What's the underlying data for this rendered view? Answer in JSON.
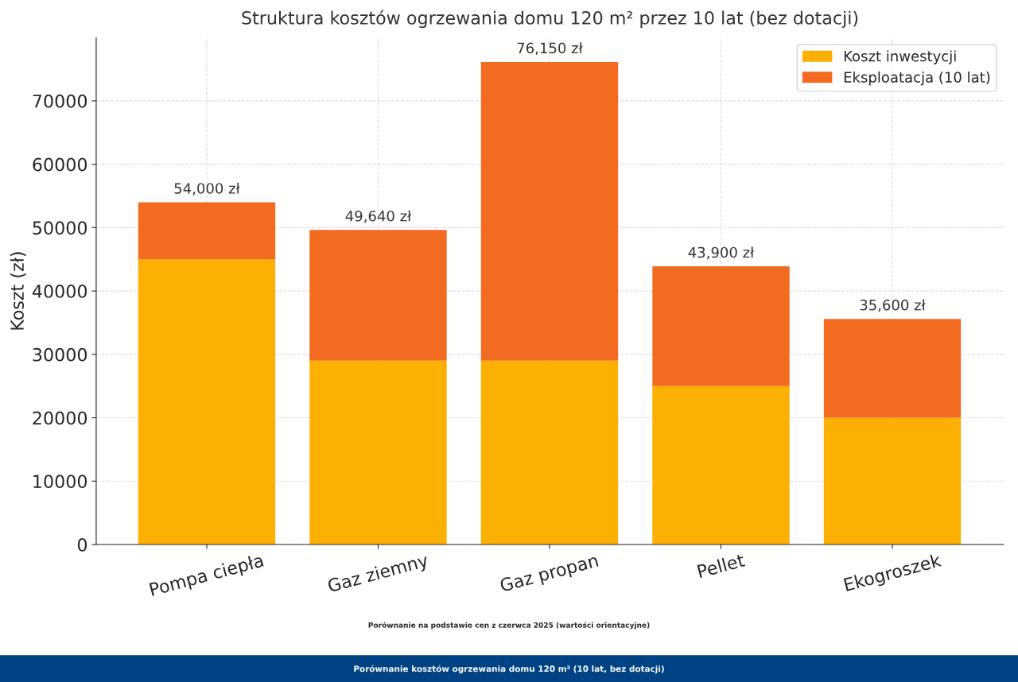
{
  "chart_data": {
    "type": "bar",
    "title": "Struktura kosztów ogrzewania domu 120 m² przez 10 lat (bez dotacji)",
    "ylabel": "Koszt (zł)",
    "categories": [
      "Pompa ciepła",
      "Gaz ziemny",
      "Gaz propan",
      "Pellet",
      "Ekogroszek"
    ],
    "stacked": true,
    "series": [
      {
        "name": "Koszt inwestycji",
        "color": "#fbb003",
        "values": [
          45000,
          29000,
          29000,
          25000,
          20000
        ]
      },
      {
        "name": "Eksploatacja (10 lat)",
        "color": "#f26b21",
        "values": [
          9000,
          20640,
          47150,
          18900,
          15600
        ]
      }
    ],
    "totals": [
      "54,000 zł",
      "49,640 zł",
      "76,150 zł",
      "43,900 zł",
      "35,600 zł"
    ],
    "ylim": [
      0,
      80000
    ],
    "yticks": [
      0,
      10000,
      20000,
      30000,
      40000,
      50000,
      60000,
      70000
    ],
    "grid": true,
    "legend": "top right",
    "annotations": [
      "Porównanie na podstawie cen z czerwca 2025 (wartości orientacyjne)",
      "Porównanie kosztów ogrzewania domu 120 m² (10 lat, bez dotacji)"
    ]
  }
}
